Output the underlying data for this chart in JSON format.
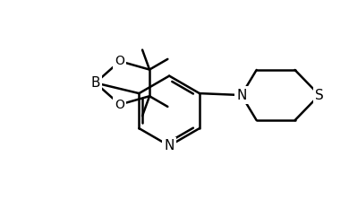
{
  "bg_color": "#ffffff",
  "line_color": "#000000",
  "line_width": 1.8,
  "font_size_atoms": 11,
  "figsize": [
    3.9,
    2.23
  ],
  "dpi": 100,
  "xlim": [
    0,
    10
  ],
  "ylim": [
    0,
    5.72
  ]
}
